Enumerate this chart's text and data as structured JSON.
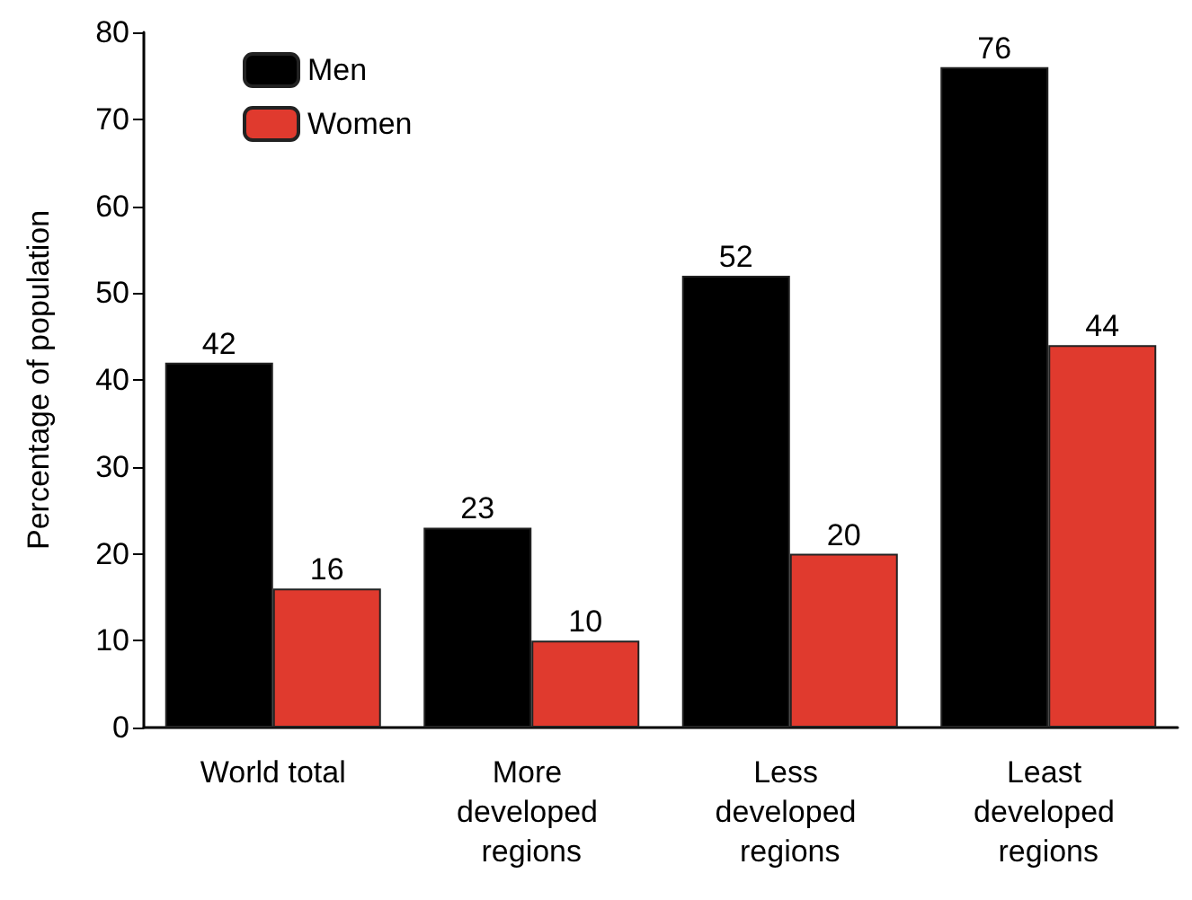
{
  "chart_data": {
    "type": "bar",
    "ylabel": "Percentage of population",
    "categories": [
      "World total",
      "More developed regions",
      "Less developed regions",
      "Least developed regions"
    ],
    "series": [
      {
        "name": "Men",
        "color": "#000000",
        "values": [
          42,
          23,
          52,
          76
        ]
      },
      {
        "name": "Women",
        "color": "#e03a2e",
        "values": [
          16,
          10,
          20,
          44
        ]
      }
    ],
    "ylim": [
      0,
      80
    ],
    "yticks": [
      0,
      10,
      20,
      30,
      40,
      50,
      60,
      70,
      80
    ],
    "data_labels": true,
    "grid": false,
    "legend": "top left"
  }
}
